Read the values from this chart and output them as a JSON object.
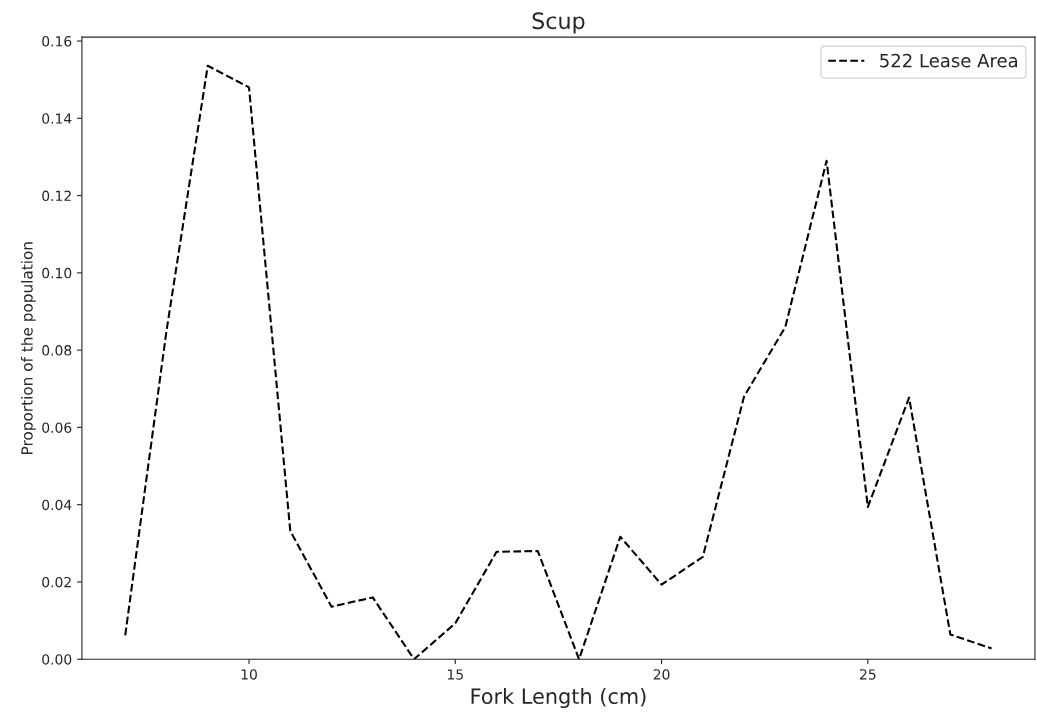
{
  "chart_data": {
    "type": "line",
    "title": "Scup",
    "xlabel": "Fork Length (cm)",
    "ylabel": "Proportion of the population",
    "x": [
      7,
      8,
      9,
      10,
      11,
      12,
      13,
      14,
      15,
      16,
      17,
      18,
      19,
      20,
      21,
      22,
      23,
      24,
      25,
      26,
      27,
      28
    ],
    "series": [
      {
        "name": "522 Lease Area",
        "color": "#000000",
        "values": [
          0.0062,
          0.085,
          0.1536,
          0.148,
          0.0332,
          0.0136,
          0.016,
          0.0,
          0.0093,
          0.0278,
          0.028,
          0.0,
          0.0317,
          0.0193,
          0.0265,
          0.068,
          0.086,
          0.129,
          0.0394,
          0.0677,
          0.0064,
          0.0028
        ]
      }
    ],
    "xlim": [
      5.95,
      29.05
    ],
    "xticks": [
      10,
      15,
      20,
      25
    ],
    "ylim": [
      0,
      0.161
    ],
    "yticks": [
      {
        "value": 0,
        "label": "0.00"
      },
      {
        "value": 0.02,
        "label": "0.02"
      },
      {
        "value": 0.04,
        "label": "0.04"
      },
      {
        "value": 0.06,
        "label": "0.06"
      },
      {
        "value": 0.08,
        "label": "0.08"
      },
      {
        "value": 0.1,
        "label": "0.10"
      },
      {
        "value": 0.12,
        "label": "0.12"
      },
      {
        "value": 0.14,
        "label": "0.14"
      },
      {
        "value": 0.16,
        "label": "0.16"
      }
    ],
    "line_style": "dashed",
    "marker": "none",
    "grid": false,
    "legend": "top right"
  }
}
